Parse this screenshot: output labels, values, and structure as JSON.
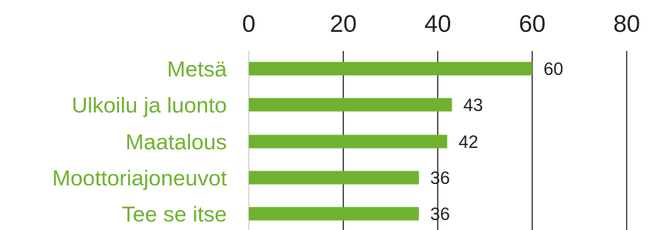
{
  "chart_data": {
    "type": "bar",
    "orientation": "horizontal",
    "categories": [
      "Metsä",
      "Ulkoilu ja luonto",
      "Maatalous",
      "Moottoriajoneuvot",
      "Tee se itse"
    ],
    "values": [
      60,
      43,
      42,
      36,
      36
    ],
    "data_labels": [
      "60",
      "43",
      "42",
      "36",
      "36"
    ],
    "xlim": [
      0,
      80
    ],
    "x_ticks": [
      0,
      20,
      40,
      60,
      80
    ],
    "x_tick_labels": [
      "0",
      "20",
      "40",
      "60",
      "80"
    ],
    "x_axis_position": "top",
    "grid": true,
    "legend": "none",
    "title": "",
    "xlabel": "",
    "ylabel": "",
    "colors": {
      "bar": "#6fb22f",
      "category_label": "#6fb22f",
      "gridline": "#000000",
      "zero_line": "#d0d0d0",
      "text": "#222222"
    }
  }
}
